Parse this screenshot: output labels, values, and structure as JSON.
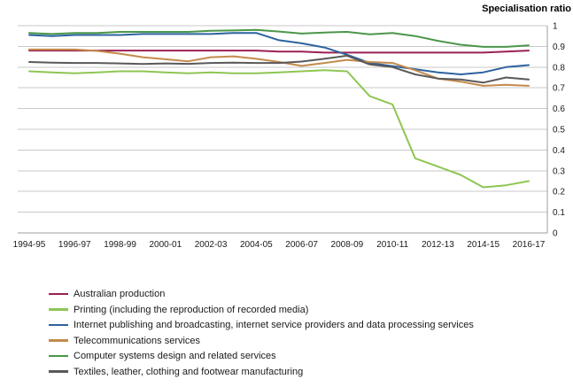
{
  "title": "Specialisation ratio",
  "colors": {
    "gridline": "#c9c9c9",
    "axis": "#9c9c9c",
    "tick_text": "#1a1a1a"
  },
  "chart_data": {
    "type": "line",
    "title": "Specialisation ratio",
    "ylabel": "Specialisation ratio",
    "xlabel": "",
    "ylim": [
      0,
      1
    ],
    "ytick_step": 0.1,
    "grid": true,
    "legend_position": "bottom-left",
    "yticks": [
      "1",
      "0.9",
      "0.8",
      "0.7",
      "0.6",
      "0.5",
      "0.4",
      "0.3",
      "0.2",
      "0.1",
      "0"
    ],
    "categories": [
      "1994-95",
      "1995-96",
      "1996-97",
      "1997-98",
      "1998-99",
      "1999-00",
      "2000-01",
      "2001-02",
      "2002-03",
      "2003-04",
      "2004-05",
      "2005-06",
      "2006-07",
      "2007-08",
      "2008-09",
      "2009-10",
      "2010-11",
      "2011-12",
      "2012-13",
      "2013-14",
      "2014-15",
      "2015-16",
      "2016-17"
    ],
    "x_tick_labels": [
      "1994-95",
      "1996-97",
      "1998-99",
      "2000-01",
      "2002-03",
      "2004-05",
      "2006-07",
      "2008-09",
      "2010-11",
      "2012-13",
      "2014-15",
      "2016-17"
    ],
    "series": [
      {
        "name": "Australian production",
        "color": "#9b2155",
        "values": [
          0.88,
          0.88,
          0.88,
          0.88,
          0.88,
          0.88,
          0.88,
          0.88,
          0.88,
          0.88,
          0.88,
          0.875,
          0.875,
          0.87,
          0.87,
          0.87,
          0.87,
          0.87,
          0.87,
          0.87,
          0.87,
          0.875,
          0.88
        ]
      },
      {
        "name": "Printing (including the reproduction of recorded media)",
        "color": "#8ec652",
        "values": [
          0.78,
          0.775,
          0.77,
          0.775,
          0.78,
          0.78,
          0.775,
          0.77,
          0.775,
          0.77,
          0.77,
          0.775,
          0.78,
          0.785,
          0.78,
          0.66,
          0.62,
          0.36,
          0.32,
          0.28,
          0.22,
          0.23,
          0.25
        ]
      },
      {
        "name": "Internet publishing and broadcasting, internet service providers and data processing services",
        "color": "#2c639f",
        "values": [
          0.955,
          0.95,
          0.955,
          0.955,
          0.955,
          0.96,
          0.96,
          0.96,
          0.96,
          0.965,
          0.965,
          0.93,
          0.915,
          0.895,
          0.86,
          0.82,
          0.805,
          0.79,
          0.775,
          0.765,
          0.775,
          0.8,
          0.81
        ]
      },
      {
        "name": "Telecommunications services",
        "color": "#c38a4c",
        "values": [
          0.885,
          0.885,
          0.885,
          0.878,
          0.865,
          0.848,
          0.838,
          0.828,
          0.848,
          0.852,
          0.84,
          0.825,
          0.806,
          0.82,
          0.835,
          0.825,
          0.82,
          0.785,
          0.745,
          0.73,
          0.71,
          0.715,
          0.71
        ]
      },
      {
        "name": "Computer systems design and related services",
        "color": "#4b9649",
        "values": [
          0.965,
          0.96,
          0.965,
          0.965,
          0.97,
          0.97,
          0.97,
          0.97,
          0.975,
          0.977,
          0.98,
          0.972,
          0.962,
          0.967,
          0.97,
          0.958,
          0.965,
          0.95,
          0.927,
          0.908,
          0.898,
          0.898,
          0.905
        ]
      },
      {
        "name": "Textiles, leather, clothing and footwear manufacturing",
        "color": "#595959",
        "values": [
          0.825,
          0.822,
          0.82,
          0.82,
          0.818,
          0.815,
          0.818,
          0.816,
          0.82,
          0.822,
          0.82,
          0.82,
          0.827,
          0.84,
          0.855,
          0.813,
          0.8,
          0.765,
          0.745,
          0.74,
          0.725,
          0.75,
          0.74
        ]
      }
    ]
  }
}
